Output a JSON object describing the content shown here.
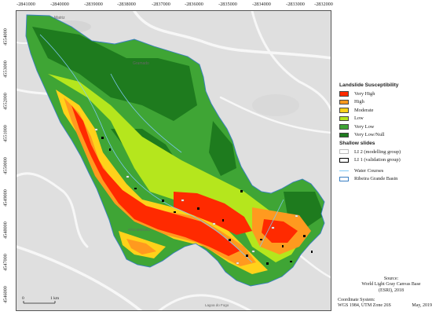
{
  "top_ticks": [
    "-2841000",
    "-2840000",
    "-2839000",
    "-2838000",
    "-2837000",
    "-2836000",
    "-2835000",
    "-2834000",
    "-2833000",
    "-2832000"
  ],
  "left_ticks": [
    "4554000",
    "4553000",
    "4552000",
    "4551000",
    "4550000",
    "4549000",
    "4548000",
    "4547000",
    "4546000"
  ],
  "map_labels": {
    "place_matriz": "Matriz",
    "place_gramado": "Gramado",
    "place_sao_miguel": "SÃO MIGUEL",
    "place_lagoa": "Lagoa do Fogo"
  },
  "legend": {
    "susceptibility_title": "Landslide Susceptibility",
    "classes": [
      {
        "label": "Very High",
        "color": "#ff2a00"
      },
      {
        "label": "High",
        "color": "#ff9a1f"
      },
      {
        "label": "Moderate",
        "color": "#ffd21a"
      },
      {
        "label": "Low",
        "color": "#b5e61d"
      },
      {
        "label": "Very Low",
        "color": "#3fa535"
      },
      {
        "label": "Very Low/Null",
        "color": "#1e7b1e"
      }
    ],
    "slides_title": "Shallow slides",
    "slides": [
      {
        "label": "LI 2 (modelling group)",
        "border": "#bbbbbb"
      },
      {
        "label": "LI 1 (validation group)",
        "border": "#000000"
      }
    ],
    "water_label": "Water Courses",
    "basin_label": "Ribeira Grande Basin"
  },
  "scale": {
    "zero": "0",
    "distance": "1 km"
  },
  "source": {
    "line1": "Source:",
    "line2": "World Light Gray Canvas Base",
    "line3": "(ESRI), 2018"
  },
  "coordinate": {
    "line1": "Coordinate System:",
    "line2": "WGS 1984, UTM Zone 26S",
    "date": "May, 2019"
  },
  "colors": {
    "basemap": "#dfdfdf",
    "road": "#f7f7f7",
    "basin_outline": "#3a7fc3",
    "water": "#7ec8f5"
  }
}
